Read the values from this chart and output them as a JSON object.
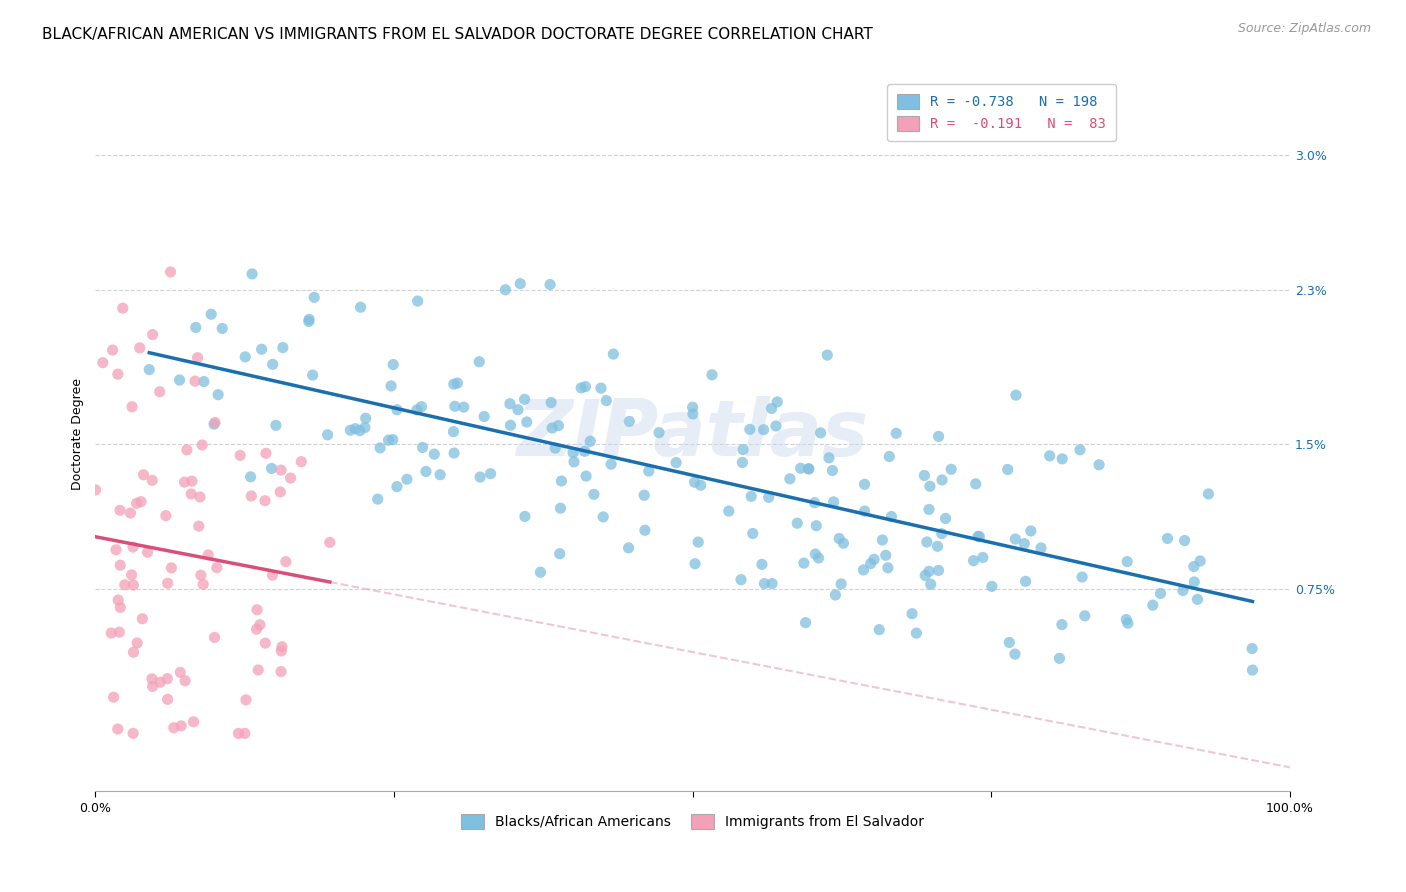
{
  "title": "BLACK/AFRICAN AMERICAN VS IMMIGRANTS FROM EL SALVADOR DOCTORATE DEGREE CORRELATION CHART",
  "source": "Source: ZipAtlas.com",
  "ylabel": "Doctorate Degree",
  "ytick_labels": [
    "0.75%",
    "1.5%",
    "2.3%",
    "3.0%"
  ],
  "ytick_values": [
    0.0075,
    0.015,
    0.023,
    0.03
  ],
  "xlim": [
    0.0,
    1.0
  ],
  "ylim": [
    -0.003,
    0.034
  ],
  "blue_color": "#7fbfdf",
  "pink_color": "#f4a0b8",
  "blue_line_color": "#1a6faf",
  "pink_line_color": "#d94f7a",
  "pink_dashed_color": "#e8b0c0",
  "legend_blue_label": "R = -0.738   N = 198",
  "legend_pink_label": "R =  -0.191   N =  83",
  "blue_R": -0.738,
  "blue_N": 198,
  "pink_R": -0.191,
  "pink_N": 83,
  "watermark": "ZIPatlas",
  "title_fontsize": 11,
  "axis_label_fontsize": 9,
  "tick_fontsize": 9,
  "legend_fontsize": 10,
  "source_fontsize": 9
}
